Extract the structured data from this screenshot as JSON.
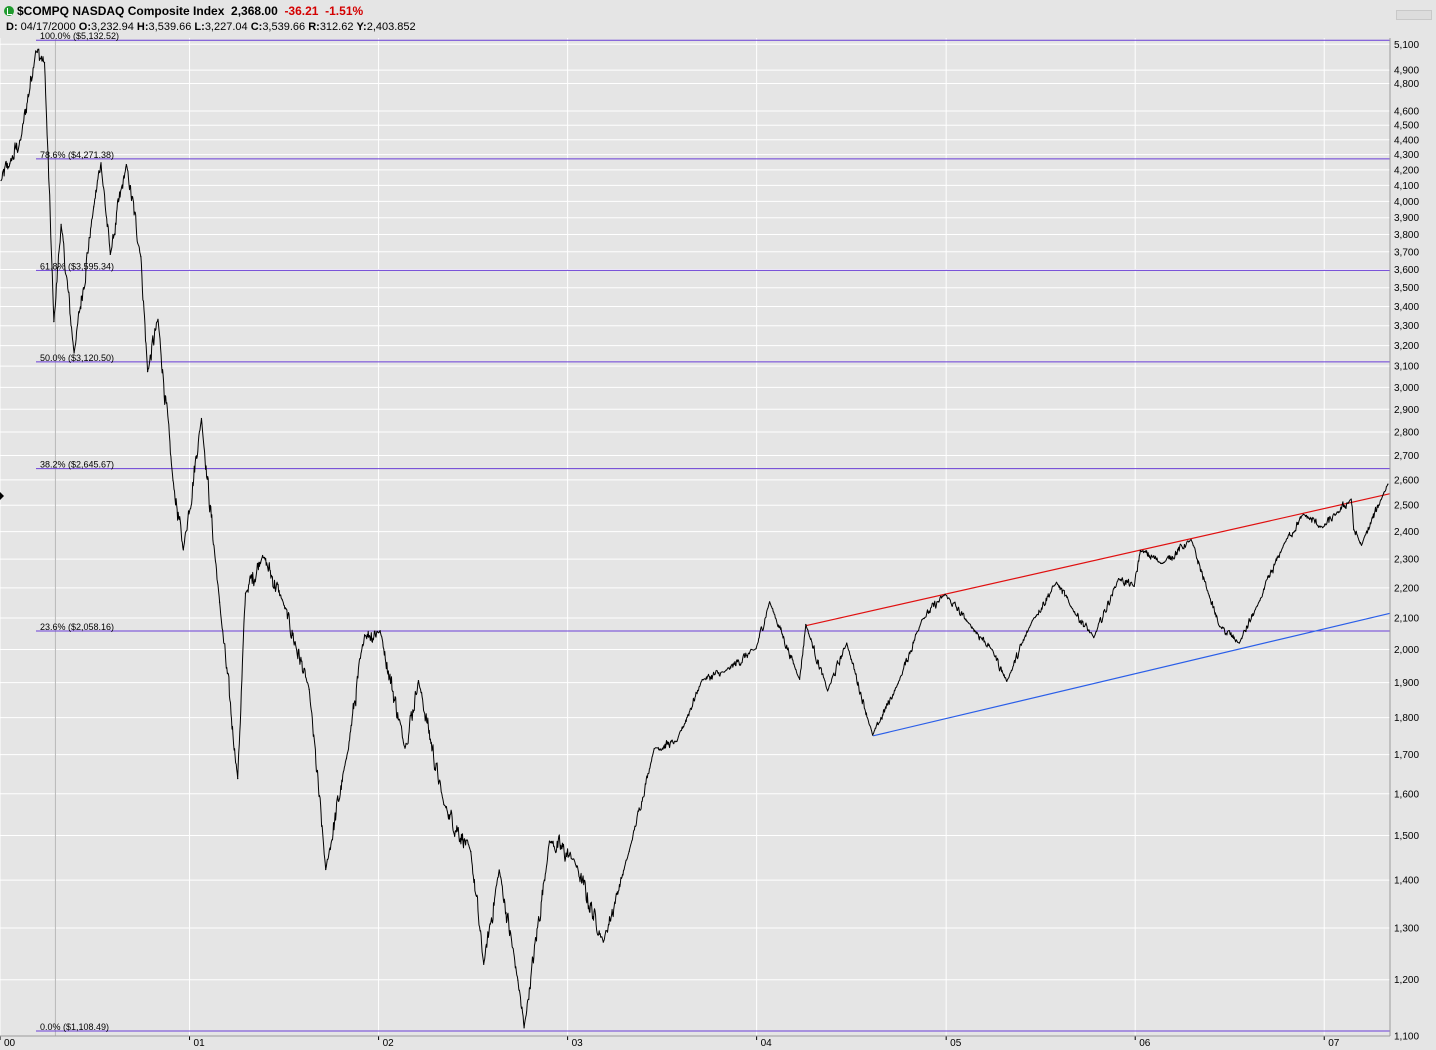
{
  "header": {
    "symbol": "$COMPQ",
    "name": "NASDAQ Composite Index",
    "last": "2,368.00",
    "change": "-36.21",
    "change_pct": "-1.51%",
    "ohlc_line": {
      "date_label": "D:",
      "date": "04/17/2000",
      "open_label": "O:",
      "open": "3,232.94",
      "high_label": "H:",
      "high": "3,539.66",
      "low_label": "L:",
      "low": "3,227.04",
      "close_label": "C:",
      "close": "3,539.66",
      "range_label": "R:",
      "range": "312.62",
      "y_label": "Y:",
      "y": "2,403.852"
    }
  },
  "colors": {
    "background": "#e5e5e5",
    "grid": "#ffffff",
    "price": "#000000",
    "fib": "#6a3fd6",
    "resistance": "#e01010",
    "support": "#2a5ee8",
    "change_red": "#d40000",
    "ticker_icon": "#1f9a2e"
  },
  "icons": {
    "ticker_status": "green-check-circle-icon"
  },
  "chart_data": {
    "type": "line",
    "scale": "log",
    "ylim": [
      1100,
      5150
    ],
    "y_ticks": [
      1100,
      1200,
      1300,
      1400,
      1500,
      1600,
      1700,
      1800,
      1900,
      2000,
      2100,
      2200,
      2300,
      2400,
      2500,
      2600,
      2700,
      2800,
      2900,
      3000,
      3100,
      3200,
      3300,
      3400,
      3500,
      3600,
      3700,
      3800,
      3900,
      4000,
      4100,
      4200,
      4300,
      4400,
      4500,
      4600,
      4800,
      4900,
      5100
    ],
    "y_tick_labels": [
      "1,100",
      "1,200",
      "1,300",
      "1,400",
      "1,500",
      "1,600",
      "1,700",
      "1,800",
      "1,900",
      "2,000",
      "2,100",
      "2,200",
      "2,300",
      "2,400",
      "2,500",
      "2,600",
      "2,700",
      "2,800",
      "2,900",
      "3,000",
      "3,100",
      "3,200",
      "3,300",
      "3,400",
      "3,500",
      "3,600",
      "3,700",
      "3,800",
      "3,900",
      "4,000",
      "4,100",
      "4,200",
      "4,300",
      "4,400",
      "4,500",
      "4,600",
      "4,800",
      "4,900",
      "5,100"
    ],
    "x_ticks": [
      "2000-01-01",
      "2001-01-01",
      "2002-01-01",
      "2003-01-01",
      "2004-01-01",
      "2005-01-01",
      "2006-01-01",
      "2007-01-01"
    ],
    "x_tick_labels": [
      "00",
      "01",
      "02",
      "03",
      "04",
      "05",
      "06",
      "07"
    ],
    "x_range": [
      "2000-01-01",
      "2007-05-08"
    ],
    "grid": true,
    "fib_levels": [
      {
        "label": "100.0%",
        "price_label": "($5,132.52)",
        "value": 5132.52
      },
      {
        "label": "78.6%",
        "price_label": "($4,271.38)",
        "value": 4271.38
      },
      {
        "label": "61.8%",
        "price_label": "($3,595.34)",
        "value": 3595.34
      },
      {
        "label": "50.0%",
        "price_label": "($3,120.50)",
        "value": 3120.5
      },
      {
        "label": "38.2%",
        "price_label": "($2,645.67)",
        "value": 2645.67
      },
      {
        "label": "23.6%",
        "price_label": "($2,058.16)",
        "value": 2058.16
      },
      {
        "label": "0.0%",
        "price_label": "($1,108.49)",
        "value": 1108.49
      }
    ],
    "trendlines": [
      {
        "name": "resistance",
        "color": "#e01010",
        "points": [
          [
            "2004-04-05",
            2075
          ],
          [
            "2007-05-08",
            2545
          ]
        ]
      },
      {
        "name": "support",
        "color": "#2a5ee8",
        "points": [
          [
            "2004-08-13",
            1750
          ],
          [
            "2007-05-08",
            2115
          ]
        ]
      }
    ],
    "series": [
      {
        "values": [
          [
            "2000-01-03",
            4131
          ],
          [
            "2000-01-20",
            4240
          ],
          [
            "2000-02-10",
            4400
          ],
          [
            "2000-03-10",
            5048
          ],
          [
            "2000-03-27",
            4958
          ],
          [
            "2000-04-14",
            3321
          ],
          [
            "2000-04-28",
            3860
          ],
          [
            "2000-05-23",
            3164
          ],
          [
            "2000-06-30",
            3966
          ],
          [
            "2000-07-14",
            4246
          ],
          [
            "2000-08-01",
            3685
          ],
          [
            "2000-09-01",
            4234
          ],
          [
            "2000-09-29",
            3672
          ],
          [
            "2000-10-12",
            3074
          ],
          [
            "2000-11-01",
            3333
          ],
          [
            "2000-11-30",
            2598
          ],
          [
            "2000-12-20",
            2333
          ],
          [
            "2001-01-24",
            2859
          ],
          [
            "2001-02-28",
            2152
          ],
          [
            "2001-04-04",
            1638
          ],
          [
            "2001-04-19",
            2182
          ],
          [
            "2001-05-22",
            2313
          ],
          [
            "2001-06-29",
            2160
          ],
          [
            "2001-08-20",
            1880
          ],
          [
            "2001-09-21",
            1423
          ],
          [
            "2001-10-31",
            1690
          ],
          [
            "2001-12-05",
            2046
          ],
          [
            "2002-01-04",
            2059
          ],
          [
            "2002-02-21",
            1717
          ],
          [
            "2002-03-19",
            1906
          ],
          [
            "2002-05-07",
            1574
          ],
          [
            "2002-06-28",
            1463
          ],
          [
            "2002-07-23",
            1229
          ],
          [
            "2002-08-22",
            1422
          ],
          [
            "2002-09-27",
            1199
          ],
          [
            "2002-10-09",
            1114
          ],
          [
            "2002-11-27",
            1487
          ],
          [
            "2003-01-13",
            1446
          ],
          [
            "2003-03-11",
            1272
          ],
          [
            "2003-04-30",
            1464
          ],
          [
            "2003-06-17",
            1715
          ],
          [
            "2003-07-31",
            1735
          ],
          [
            "2003-09-18",
            1909
          ],
          [
            "2003-10-31",
            1932
          ],
          [
            "2003-12-31",
            2003
          ],
          [
            "2004-01-26",
            2153
          ],
          [
            "2004-03-24",
            1910
          ],
          [
            "2004-04-05",
            2079
          ],
          [
            "2004-05-17",
            1876
          ],
          [
            "2004-06-23",
            2020
          ],
          [
            "2004-08-12",
            1752
          ],
          [
            "2004-09-30",
            1897
          ],
          [
            "2004-11-15",
            2094
          ],
          [
            "2004-12-30",
            2178
          ],
          [
            "2005-02-14",
            2082
          ],
          [
            "2005-03-31",
            1999
          ],
          [
            "2005-04-28",
            1904
          ],
          [
            "2005-06-16",
            2090
          ],
          [
            "2005-08-02",
            2219
          ],
          [
            "2005-08-30",
            2137
          ],
          [
            "2005-10-13",
            2037
          ],
          [
            "2005-11-30",
            2232
          ],
          [
            "2005-12-30",
            2205
          ],
          [
            "2006-01-11",
            2331
          ],
          [
            "2006-02-23",
            2285
          ],
          [
            "2006-04-19",
            2370
          ],
          [
            "2006-05-24",
            2173
          ],
          [
            "2006-06-13",
            2072
          ],
          [
            "2006-07-21",
            2020
          ],
          [
            "2006-08-25",
            2140
          ],
          [
            "2006-10-16",
            2357
          ],
          [
            "2006-11-22",
            2465
          ],
          [
            "2006-12-29",
            2415
          ],
          [
            "2007-01-24",
            2466
          ],
          [
            "2007-02-22",
            2524
          ],
          [
            "2007-02-27",
            2408
          ],
          [
            "2007-03-14",
            2350
          ],
          [
            "2007-04-26",
            2548
          ],
          [
            "2007-05-04",
            2583
          ]
        ]
      }
    ]
  }
}
